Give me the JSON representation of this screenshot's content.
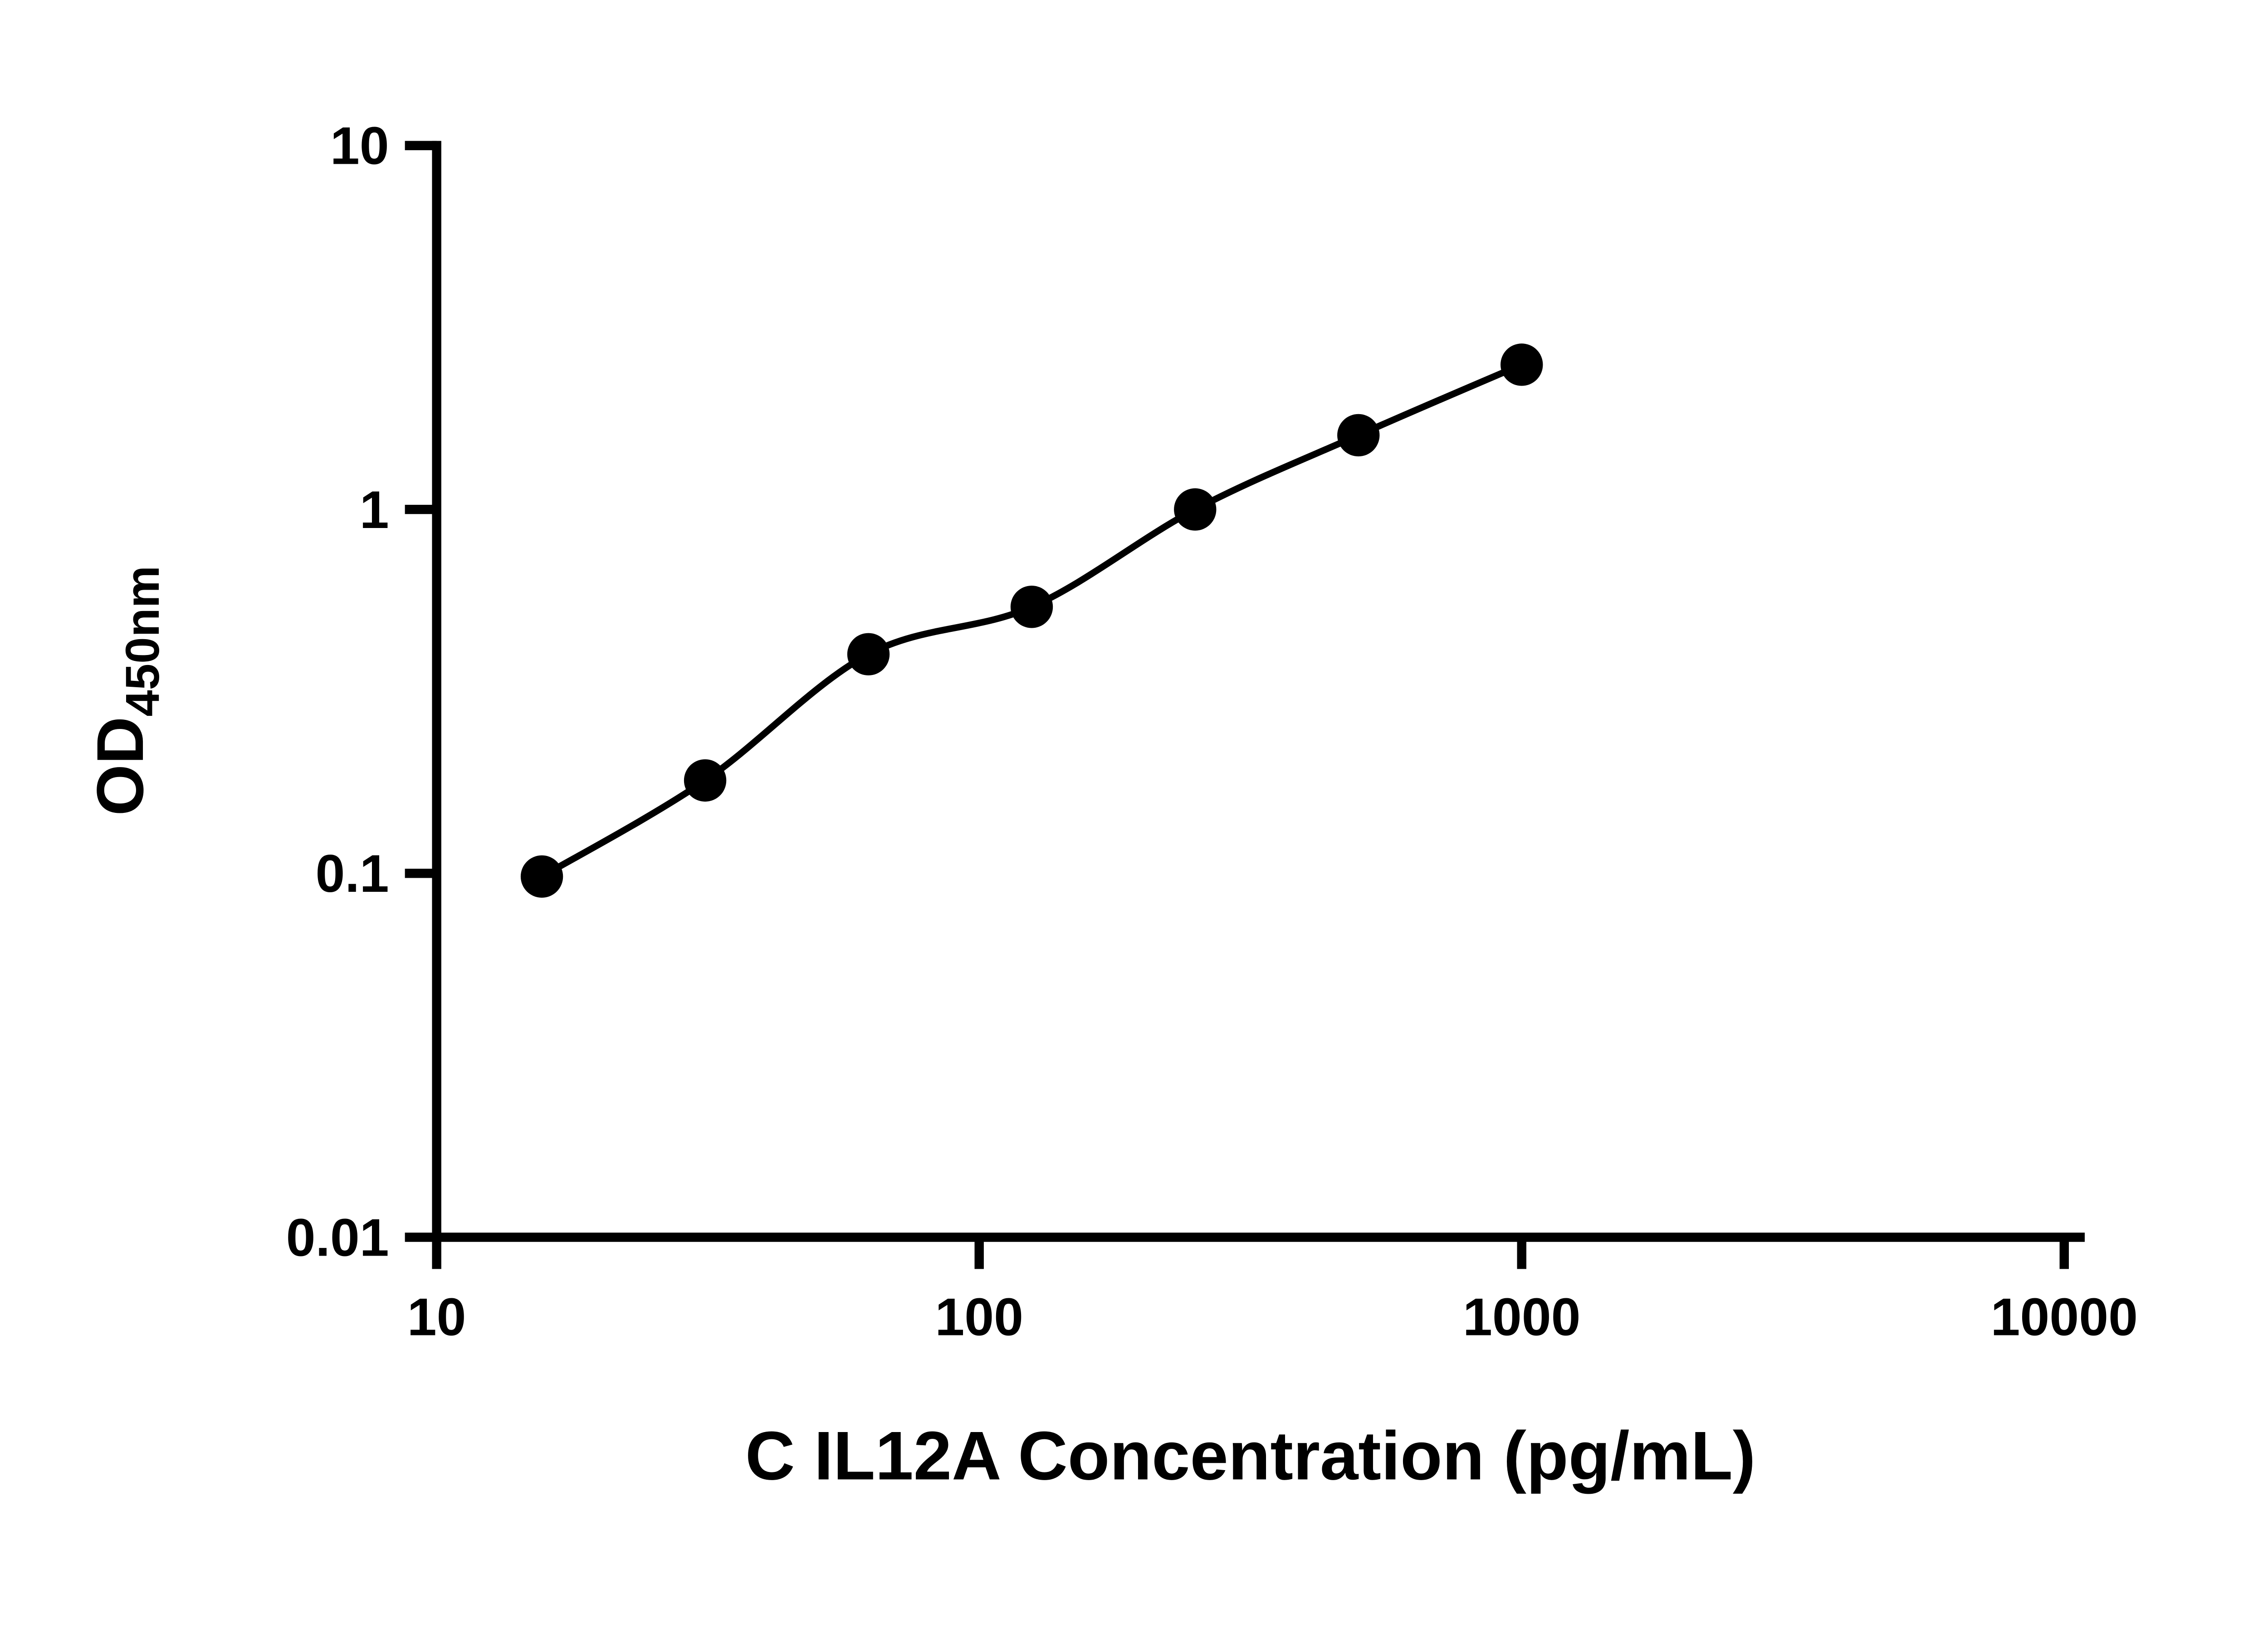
{
  "chart_data": {
    "type": "scatter",
    "title": "",
    "xlabel": "C IL12A Concentration (pg/mL)",
    "ylabel": "OD",
    "ylabel_sub": "450nm",
    "x": [
      15.63,
      31.25,
      62.5,
      125,
      250,
      500,
      1000
    ],
    "y": [
      0.098,
      0.18,
      0.4,
      0.54,
      1.0,
      1.6,
      2.5
    ],
    "xscale": "log",
    "yscale": "log",
    "xlim": [
      10,
      10000
    ],
    "ylim": [
      0.01,
      10
    ],
    "x_ticks": [
      10,
      100,
      1000,
      10000
    ],
    "x_tick_labels": [
      "10",
      "100",
      "1000",
      "10000"
    ],
    "y_ticks": [
      10,
      1,
      0.1,
      0.01
    ],
    "y_tick_labels": [
      "10",
      "1",
      "0.1",
      "0.01"
    ],
    "grid": false,
    "legend": false,
    "line_through_points": true,
    "marker": "circle",
    "marker_color": "#000000",
    "line_color": "#000000",
    "axis_color": "#000000",
    "background_color": "#ffffff"
  }
}
